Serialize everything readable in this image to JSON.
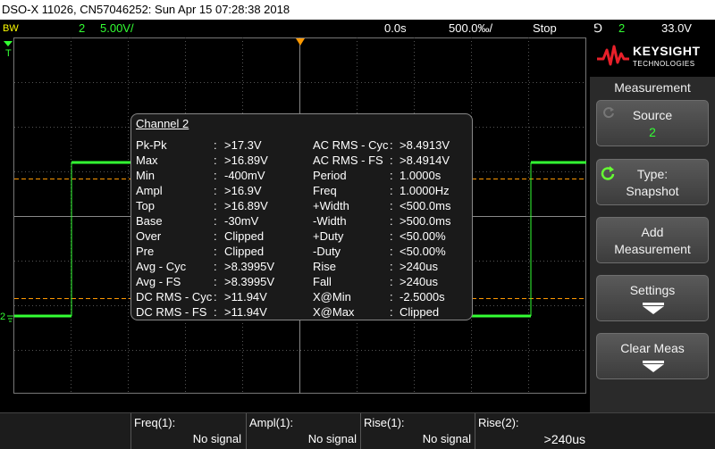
{
  "title": "DSO-X 11026, CN57046252: Sun Apr 15 07:28:38 2018",
  "status": {
    "bw": "BW",
    "channel": "2",
    "scale": "5.00V/",
    "time_offset": "0.0s",
    "time_scale": "500.0‰/",
    "run_state": "Stop",
    "trigger_symbol": "⅁",
    "trigger_channel": "2",
    "trigger_level": "33.0V"
  },
  "markers": {
    "trigger_t": "T",
    "channel_ground": "2"
  },
  "measurement": {
    "title": "Channel 2",
    "rows": [
      {
        "l": "Pk-Pk",
        "lv": ">17.3V",
        "r": "AC RMS - Cyc",
        "rv": ">8.4913V"
      },
      {
        "l": "Max",
        "lv": ">16.89V",
        "r": "AC RMS - FS",
        "rv": ">8.4914V"
      },
      {
        "l": "Min",
        "lv": "-400mV",
        "r": "Period",
        "rv": "1.0000s"
      },
      {
        "l": "Ampl",
        "lv": ">16.9V",
        "r": "Freq",
        "rv": "1.0000Hz"
      },
      {
        "l": "Top",
        "lv": ">16.89V",
        "r": "+Width",
        "rv": "<500.0ms"
      },
      {
        "l": "Base",
        "lv": "-30mV",
        "r": "-Width",
        "rv": ">500.0ms"
      },
      {
        "l": "Over",
        "lv": "Clipped",
        "r": "+Duty",
        "rv": "<50.00%"
      },
      {
        "l": "Pre",
        "lv": "Clipped",
        "r": "-Duty",
        "rv": "<50.00%"
      },
      {
        "l": "Avg - Cyc",
        "lv": ">8.3995V",
        "r": "Rise",
        "rv": ">240us"
      },
      {
        "l": "Avg - FS",
        "lv": ">8.3995V",
        "r": "Fall",
        "rv": ">240us"
      },
      {
        "l": "DC RMS - Cyc",
        "lv": ">11.94V",
        "r": "X@Min",
        "rv": "-2.5000s"
      },
      {
        "l": "DC RMS - FS",
        "lv": ">11.94V",
        "r": "X@Max",
        "rv": "Clipped"
      }
    ]
  },
  "sidebar": {
    "brand": "KEYSIGHT",
    "brand_sub": "TECHNOLOGIES",
    "menu_title": "Measurement",
    "source_label": "Source",
    "source_value": "2",
    "type_label": "Type:",
    "type_value": "Snapshot",
    "add_line1": "Add",
    "add_line2": "Measurement",
    "settings_label": "Settings",
    "clear_label": "Clear Meas"
  },
  "footer": [
    {
      "label": "Freq(1):",
      "value": "No signal"
    },
    {
      "label": "Ampl(1):",
      "value": "No signal"
    },
    {
      "label": "Rise(1):",
      "value": "No signal"
    },
    {
      "label": "Rise(2):",
      "value": ">240us"
    }
  ],
  "colors": {
    "channel2": "#33ff33",
    "channel1": "#ffff00",
    "trigger": "#ff9900"
  }
}
